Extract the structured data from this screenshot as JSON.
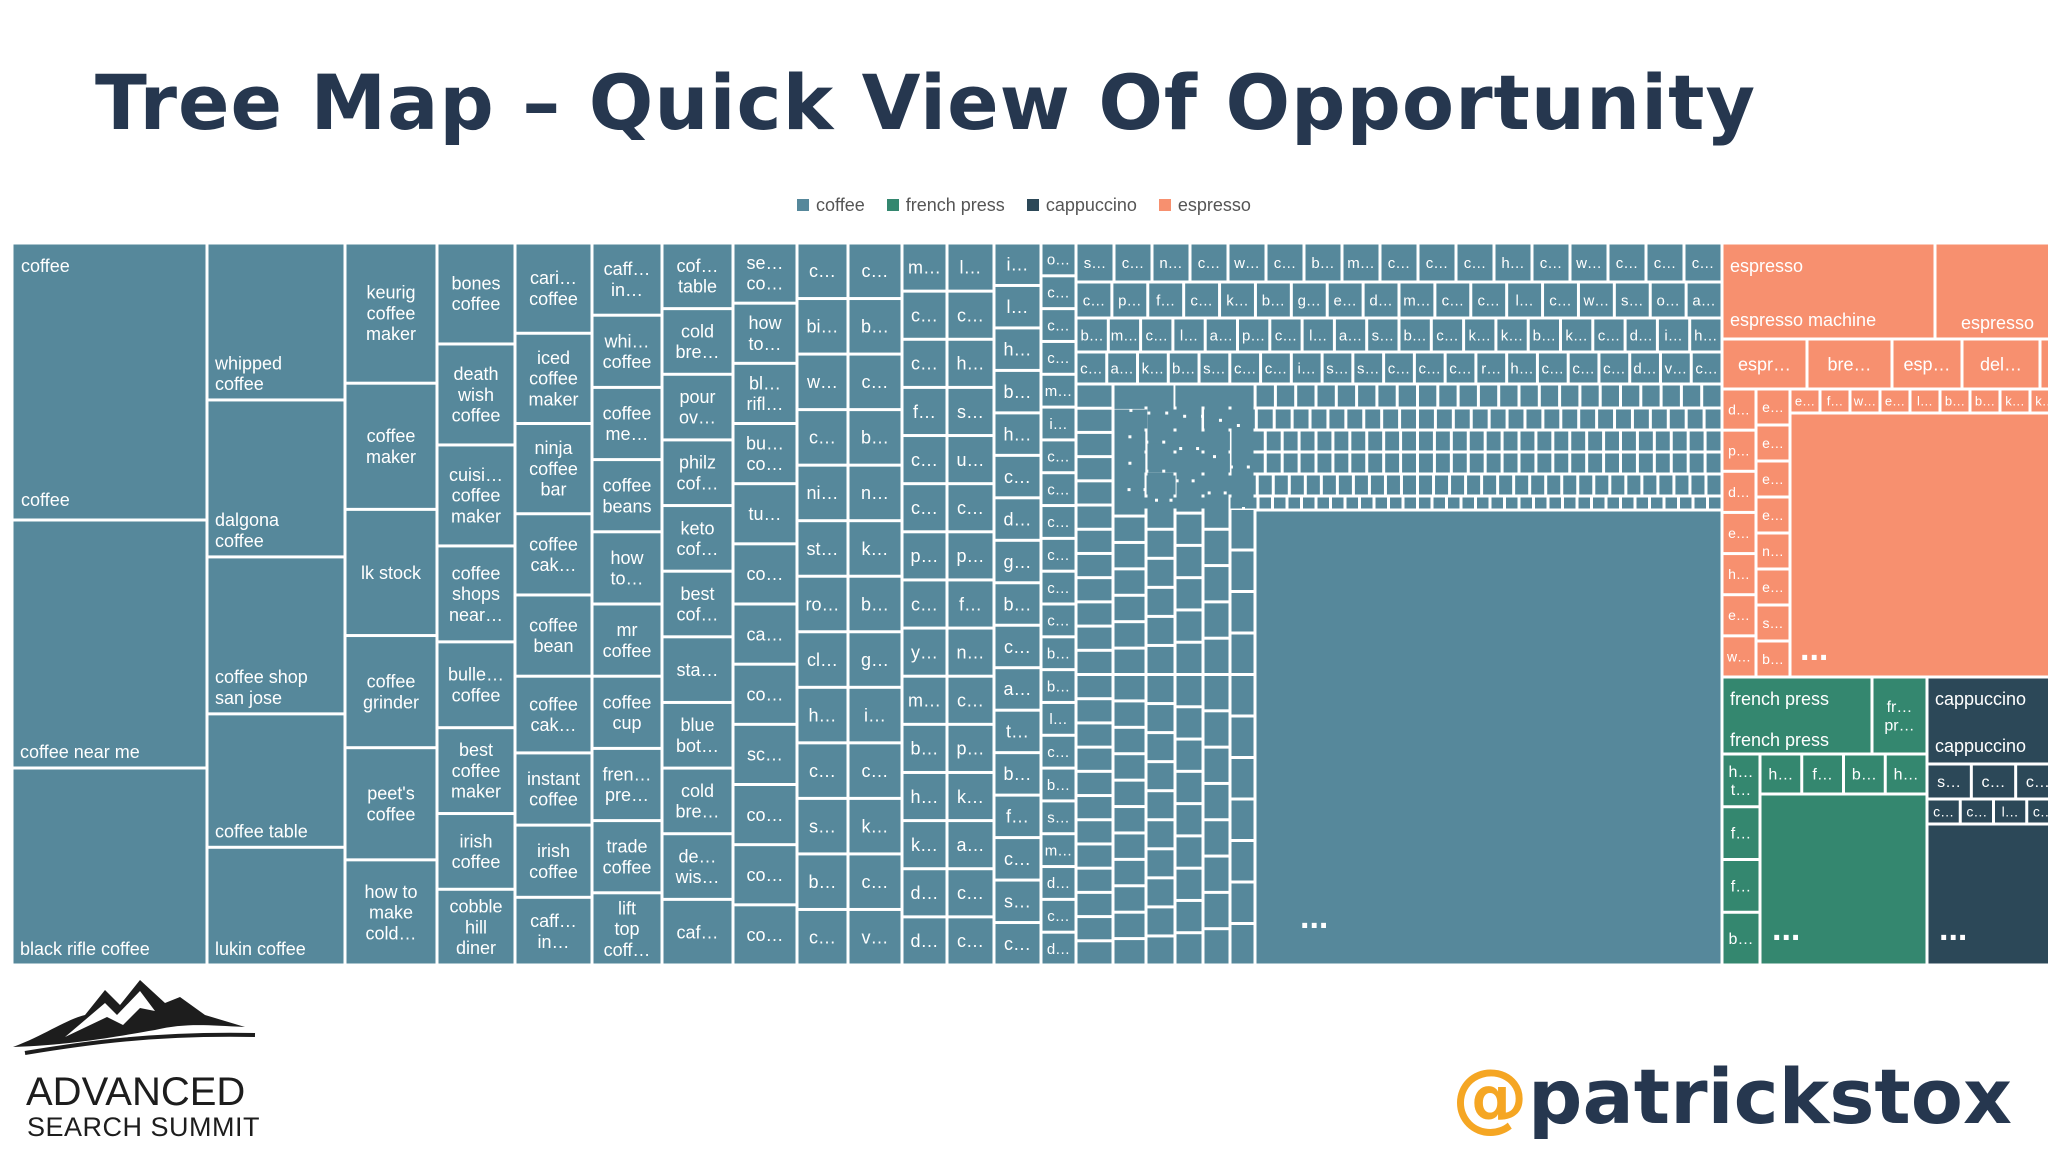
{
  "slide": {
    "title": "Tree Map – Quick View Of Opportunity",
    "handle_at": "@",
    "handle_name": "patrickstox",
    "logo_line1": "ADVANCED",
    "logo_line2": "SEARCH SUMMIT"
  },
  "colors": {
    "coffee": "#56889b",
    "french press": "#34876f",
    "cappuccino": "#2c4858",
    "espresso": "#f7906f",
    "title": "#26374f",
    "handle_at": "#f5a623"
  },
  "chart_data": {
    "type": "treemap",
    "legend": [
      "coffee",
      "french press",
      "cappuccino",
      "espresso"
    ],
    "legend_position": "top-center",
    "groups": [
      {
        "name": "coffee",
        "labeled_tiles": [
          "coffee",
          "coffee near me",
          "black rifle coffee",
          "whipped coffee",
          "dalgona coffee",
          "coffee shop san jose",
          "coffee table",
          "lukin coffee",
          "keurig coffee maker",
          "coffee maker",
          "lk stock",
          "coffee grinder",
          "peet's coffee",
          "how to make cold…",
          "bones coffee",
          "death wish coffee",
          "cuisi… coffee maker",
          "coffee shops near…",
          "bulle… coffee",
          "best coffee maker",
          "irish coffee",
          "cobble hill diner",
          "cari… coffee",
          "iced coffee maker",
          "ninja coffee bar",
          "coffee cak…",
          "coffee bean",
          "coffee cak…",
          "instant coffee",
          "caff… in…",
          "caff… in…",
          "whi… coffee",
          "coffee me…",
          "coffee beans",
          "how to…",
          "mr coffee",
          "coffee cup",
          "fren… pre…",
          "trade coffee",
          "lift top coff…",
          "cof… table",
          "cold bre…",
          "pour ov…",
          "philz cof…",
          "keto cof…",
          "best cof…",
          "sta…",
          "blue bot…",
          "cold bre…",
          "de… wis…",
          "caf…",
          "se… co…",
          "how to…",
          "bl… rifl…",
          "bu… co…",
          "tu…",
          "co…",
          "ca…",
          "co…",
          "sc…",
          "co…",
          "co…",
          "co…"
        ],
        "overflow_marker": "..."
      },
      {
        "name": "espresso",
        "labeled_tiles": [
          "espresso machine",
          "espresso",
          "espr…",
          "bre…",
          "esp…",
          "del…",
          "b…"
        ],
        "overflow_marker": "..."
      },
      {
        "name": "french press",
        "labeled_tiles": [
          "french press",
          "fr… pr…",
          "h…",
          "f…",
          "b…",
          "h…",
          "h… t…",
          "f…",
          "f…",
          "b…"
        ],
        "overflow_marker": "..."
      },
      {
        "name": "cappuccino",
        "labeled_tiles": [
          "cappuccino",
          "s…",
          "c…",
          "c…",
          "c…",
          "c…",
          "l…",
          "c…"
        ],
        "overflow_marker": "..."
      }
    ],
    "headers": {
      "coffee": "coffee",
      "espresso": "espresso",
      "french_press": "french press",
      "cappuccino": "cappuccino"
    },
    "columns": [
      {
        "tiles": [
          {
            "label": "coffee near me",
            "size": 1
          },
          {
            "label": "black rifle coffee",
            "size": 1
          }
        ]
      },
      {
        "tiles": [
          {
            "label": "whipped coffee",
            "size": 1
          },
          {
            "label": "dalgona coffee",
            "size": 1
          },
          {
            "label": "coffee shop san jose",
            "size": 1
          },
          {
            "label": "coffee table",
            "size": 0.85
          },
          {
            "label": "lukin coffee",
            "size": 0.75
          }
        ]
      },
      {
        "tiles": [
          {
            "label": "keurig coffee maker",
            "size": 1
          },
          {
            "label": "coffee maker",
            "size": 0.9
          },
          {
            "label": "lk stock",
            "size": 0.9
          },
          {
            "label": "coffee grinder",
            "size": 0.8
          },
          {
            "label": "peet's coffee",
            "size": 0.8
          },
          {
            "label": "how to make cold…",
            "size": 0.75
          }
        ]
      },
      {
        "tiles": [
          {
            "label": "bones coffee",
            "size": 1
          },
          {
            "label": "death wish coffee",
            "size": 1
          },
          {
            "label": "cuisi… coffee maker",
            "size": 1
          },
          {
            "label": "coffee shops near…",
            "size": 0.95
          },
          {
            "label": "bulle… coffee",
            "size": 0.85
          },
          {
            "label": "best coffee maker",
            "size": 0.85
          },
          {
            "label": "irish coffee",
            "size": 0.75
          },
          {
            "label": "cobble hill diner",
            "size": 0.75
          }
        ]
      },
      {
        "tiles": [
          {
            "label": "cari… coffee",
            "size": 1
          },
          {
            "label": "iced coffee maker",
            "size": 1
          },
          {
            "label": "ninja coffee bar",
            "size": 1
          },
          {
            "label": "coffee cak…",
            "size": 0.9
          },
          {
            "label": "coffee bean",
            "size": 0.9
          },
          {
            "label": "coffee cak…",
            "size": 0.85
          },
          {
            "label": "instant coffee",
            "size": 0.8
          },
          {
            "label": "irish coffee",
            "size": 0.8
          },
          {
            "label": "caff… in…",
            "size": 0.75
          }
        ]
      },
      {
        "tiles": [
          {
            "label": "caff… in…",
            "size": 1
          },
          {
            "label": "whi… coffee",
            "size": 1
          },
          {
            "label": "coffee me…",
            "size": 1
          },
          {
            "label": "coffee beans",
            "size": 1
          },
          {
            "label": "how to…",
            "size": 1
          },
          {
            "label": "mr coffee",
            "size": 1
          },
          {
            "label": "coffee cup",
            "size": 1
          },
          {
            "label": "fren… pre…",
            "size": 1
          },
          {
            "label": "trade coffee",
            "size": 1
          },
          {
            "label": "lift top coff…",
            "size": 1
          }
        ]
      },
      {
        "tiles": [
          {
            "label": "cof… table",
            "size": 1
          },
          {
            "label": "cold bre…",
            "size": 1
          },
          {
            "label": "pour ov…",
            "size": 1
          },
          {
            "label": "philz cof…",
            "size": 1
          },
          {
            "label": "keto cof…",
            "size": 1
          },
          {
            "label": "best cof…",
            "size": 1
          },
          {
            "label": "sta…",
            "size": 1
          },
          {
            "label": "blue bot…",
            "size": 1
          },
          {
            "label": "cold bre…",
            "size": 1
          },
          {
            "label": "de… wis…",
            "size": 1
          },
          {
            "label": "caf…",
            "size": 1
          }
        ]
      },
      {
        "tiles": [
          {
            "label": "se… co…",
            "size": 1
          },
          {
            "label": "how to…",
            "size": 1
          },
          {
            "label": "bl… rifl…",
            "size": 1
          },
          {
            "label": "bu… co…",
            "size": 1
          },
          {
            "label": "tu…",
            "size": 1
          },
          {
            "label": "co…",
            "size": 1
          },
          {
            "label": "ca…",
            "size": 1
          },
          {
            "label": "co…",
            "size": 1
          },
          {
            "label": "sc…",
            "size": 1
          },
          {
            "label": "co…",
            "size": 1
          },
          {
            "label": "co…",
            "size": 1
          },
          {
            "label": "co…",
            "size": 1
          }
        ]
      },
      {
        "tiles": [
          {
            "label": "c…",
            "size": 1
          },
          {
            "label": "bi…",
            "size": 1
          },
          {
            "label": "w…",
            "size": 1
          },
          {
            "label": "c…",
            "size": 1
          },
          {
            "label": "ni…",
            "size": 1
          },
          {
            "label": "st…",
            "size": 1
          },
          {
            "label": "ro…",
            "size": 1
          },
          {
            "label": "cl…",
            "size": 1
          },
          {
            "label": "h…",
            "size": 1
          },
          {
            "label": "c…",
            "size": 1
          },
          {
            "label": "s…",
            "size": 1
          },
          {
            "label": "b…",
            "size": 1
          },
          {
            "label": "c…",
            "size": 1
          }
        ]
      },
      {
        "tiles": [
          {
            "label": "c…",
            "size": 1
          },
          {
            "label": "b…",
            "size": 1
          },
          {
            "label": "c…",
            "size": 1
          },
          {
            "label": "b…",
            "size": 1
          },
          {
            "label": "n…",
            "size": 1
          },
          {
            "label": "k…",
            "size": 1
          },
          {
            "label": "b…",
            "size": 1
          },
          {
            "label": "g…",
            "size": 1
          },
          {
            "label": "i…",
            "size": 1
          },
          {
            "label": "c…",
            "size": 1
          },
          {
            "label": "k…",
            "size": 1
          },
          {
            "label": "c…",
            "size": 1
          },
          {
            "label": "v…",
            "size": 1
          }
        ]
      },
      {
        "tiles": [
          {
            "label": "m…",
            "size": 1
          },
          {
            "label": "c…",
            "size": 1
          },
          {
            "label": "c…",
            "size": 1
          },
          {
            "label": "f…",
            "size": 1
          },
          {
            "label": "c…",
            "size": 1
          },
          {
            "label": "c…",
            "size": 1
          },
          {
            "label": "p…",
            "size": 1
          },
          {
            "label": "c…",
            "size": 1
          },
          {
            "label": "y…",
            "size": 1
          },
          {
            "label": "m…",
            "size": 1
          },
          {
            "label": "b…",
            "size": 1
          },
          {
            "label": "h…",
            "size": 1
          },
          {
            "label": "k…",
            "size": 1
          },
          {
            "label": "d…",
            "size": 1
          },
          {
            "label": "d…",
            "size": 1
          }
        ]
      },
      {
        "tiles": [
          {
            "label": "l…",
            "size": 1
          },
          {
            "label": "c…",
            "size": 1
          },
          {
            "label": "h…",
            "size": 1
          },
          {
            "label": "s…",
            "size": 1
          },
          {
            "label": "u…",
            "size": 1
          },
          {
            "label": "c…",
            "size": 1
          },
          {
            "label": "p…",
            "size": 1
          },
          {
            "label": "f…",
            "size": 1
          },
          {
            "label": "n…",
            "size": 1
          },
          {
            "label": "c…",
            "size": 1
          },
          {
            "label": "p…",
            "size": 1
          },
          {
            "label": "k…",
            "size": 1
          },
          {
            "label": "a…",
            "size": 1
          },
          {
            "label": "c…",
            "size": 1
          },
          {
            "label": "c…",
            "size": 1
          }
        ]
      },
      {
        "tiles": [
          {
            "label": "i…",
            "size": 1
          },
          {
            "label": "l…",
            "size": 1
          },
          {
            "label": "h…",
            "size": 1
          },
          {
            "label": "b…",
            "size": 1
          },
          {
            "label": "h…",
            "size": 1
          },
          {
            "label": "c…",
            "size": 1
          },
          {
            "label": "d…",
            "size": 1
          },
          {
            "label": "g…",
            "size": 1
          },
          {
            "label": "b…",
            "size": 1
          },
          {
            "label": "c…",
            "size": 1
          },
          {
            "label": "a…",
            "size": 1
          },
          {
            "label": "t…",
            "size": 1
          },
          {
            "label": "b…",
            "size": 1
          },
          {
            "label": "f…",
            "size": 1
          },
          {
            "label": "c…",
            "size": 1
          },
          {
            "label": "s…",
            "size": 1
          },
          {
            "label": "c…",
            "size": 1
          }
        ]
      },
      {
        "tiles": [
          {
            "label": "o…",
            "size": 1
          },
          {
            "label": "c…",
            "size": 1
          },
          {
            "label": "c…",
            "size": 1
          },
          {
            "label": "c…",
            "size": 1
          },
          {
            "label": "m…",
            "size": 1
          },
          {
            "label": "i…",
            "size": 1
          },
          {
            "label": "c…",
            "size": 1
          },
          {
            "label": "c…",
            "size": 1
          },
          {
            "label": "c…",
            "size": 1
          },
          {
            "label": "c…",
            "size": 1
          },
          {
            "label": "c…",
            "size": 1
          },
          {
            "label": "c…",
            "size": 1
          },
          {
            "label": "b…",
            "size": 1
          },
          {
            "label": "b…",
            "size": 1
          },
          {
            "label": "l…",
            "size": 1
          },
          {
            "label": "c…",
            "size": 1
          },
          {
            "label": "b…",
            "size": 1
          },
          {
            "label": "s…",
            "size": 1
          },
          {
            "label": "m…",
            "size": 1
          },
          {
            "label": "d…",
            "size": 1
          },
          {
            "label": "c…",
            "size": 1
          },
          {
            "label": "d…",
            "size": 1
          }
        ]
      }
    ],
    "top_row_labels": [
      "s…",
      "c…",
      "n…",
      "c…",
      "w…",
      "c…",
      "b…",
      "m…",
      "c…",
      "c…",
      "c…",
      "h…",
      "c…",
      "w…",
      "c…",
      "c…",
      "c…"
    ],
    "second_row_labels": [
      "c…",
      "p…",
      "f…",
      "c…",
      "k…",
      "b…",
      "g…",
      "e…",
      "d…",
      "m…",
      "c…",
      "c…",
      "l…",
      "c…",
      "w…",
      "s…",
      "o…",
      "a…"
    ],
    "third_row_labels": [
      "b…",
      "m…",
      "c…",
      "l…",
      "a…",
      "p…",
      "c…",
      "l…",
      "a…",
      "s…",
      "b…",
      "c…",
      "k…",
      "k…",
      "b…",
      "k…",
      "c…",
      "d…",
      "i…",
      "h…"
    ],
    "fourth_row_labels": [
      "c…",
      "a…",
      "k…",
      "b…",
      "s…",
      "c…",
      "c…",
      "i…",
      "s…",
      "s…",
      "c…",
      "c…",
      "c…",
      "r…",
      "h…",
      "c…",
      "c…",
      "c…",
      "d…",
      "v…",
      "c…"
    ],
    "espresso_second_row": [
      "espr…",
      "bre…",
      "esp…",
      "del…",
      "b…"
    ],
    "espresso_left_col": [
      "d…",
      "p…",
      "d…",
      "e…",
      "h…",
      "e…",
      "w…"
    ],
    "espresso_inner_col": [
      "e…",
      "e…",
      "e…",
      "e…",
      "n…",
      "e…",
      "s…",
      "b…"
    ],
    "espresso_mini_row": [
      "e…",
      "f…",
      "w…",
      "e…",
      "l…",
      "b…",
      "b…",
      "k…",
      "k…"
    ],
    "fp_small_row": [
      "h…",
      "f…",
      "b…",
      "h…"
    ],
    "fp_left_col": [
      "h… t…",
      "f…",
      "f…",
      "b…"
    ],
    "cap_row1": [
      "s…",
      "c…",
      "c…"
    ],
    "cap_row2": [
      "c…",
      "c…",
      "l…",
      "c…"
    ]
  }
}
